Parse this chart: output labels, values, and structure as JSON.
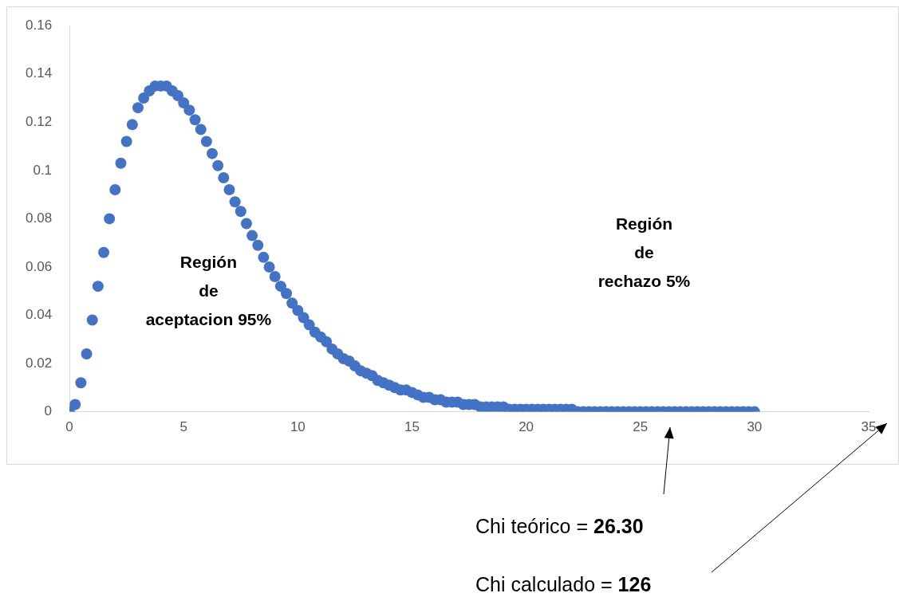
{
  "chart_data": {
    "type": "scatter",
    "marker": "circle",
    "grid": false,
    "legend": false,
    "xlim": [
      0,
      35
    ],
    "xticks": [
      0,
      5,
      10,
      15,
      20,
      25,
      30,
      35
    ],
    "ylim": [
      0,
      0.16
    ],
    "yticks": [
      0,
      0.02,
      0.04,
      0.06,
      0.08,
      0.1,
      0.12,
      0.14,
      0.16
    ],
    "series": [
      {
        "color": "#4472c4",
        "x": [
          0,
          0.25,
          0.5,
          0.75,
          1,
          1.25,
          1.5,
          1.75,
          2,
          2.25,
          2.5,
          2.75,
          3,
          3.25,
          3.5,
          3.75,
          4,
          4.25,
          4.5,
          4.75,
          5,
          5.25,
          5.5,
          5.75,
          6,
          6.25,
          6.5,
          6.75,
          7,
          7.25,
          7.5,
          7.75,
          8,
          8.25,
          8.5,
          8.75,
          9,
          9.25,
          9.5,
          9.75,
          10,
          10.25,
          10.5,
          10.75,
          11,
          11.25,
          11.5,
          11.75,
          12,
          12.25,
          12.5,
          12.75,
          13,
          13.25,
          13.5,
          13.75,
          14,
          14.25,
          14.5,
          14.75,
          15,
          15.25,
          15.5,
          15.75,
          16,
          16.25,
          16.5,
          16.75,
          17,
          17.25,
          17.5,
          17.75,
          18,
          18.25,
          18.5,
          18.75,
          19,
          19.25,
          19.5,
          19.75,
          20,
          20.25,
          20.5,
          20.75,
          21,
          21.25,
          21.5,
          21.75,
          22,
          22.25,
          22.5,
          22.75,
          23,
          23.25,
          23.5,
          23.75,
          24,
          24.25,
          24.5,
          24.75,
          25,
          25.25,
          25.5,
          25.75,
          26,
          26.25,
          26.5,
          26.75,
          27,
          27.25,
          27.5,
          27.75,
          28,
          28.25,
          28.5,
          28.75,
          29,
          29.25,
          29.5,
          29.75,
          30
        ],
        "values": [
          0,
          0.003,
          0.012,
          0.024,
          0.038,
          0.052,
          0.066,
          0.08,
          0.092,
          0.103,
          0.112,
          0.119,
          0.126,
          0.13,
          0.133,
          0.135,
          0.135,
          0.135,
          0.133,
          0.131,
          0.128,
          0.125,
          0.121,
          0.117,
          0.112,
          0.107,
          0.102,
          0.097,
          0.092,
          0.087,
          0.083,
          0.078,
          0.073,
          0.069,
          0.064,
          0.06,
          0.056,
          0.052,
          0.049,
          0.045,
          0.042,
          0.039,
          0.036,
          0.033,
          0.031,
          0.029,
          0.026,
          0.024,
          0.022,
          0.021,
          0.019,
          0.017,
          0.016,
          0.015,
          0.013,
          0.012,
          0.011,
          0.01,
          0.009,
          0.009,
          0.008,
          0.007,
          0.006,
          0.006,
          0.005,
          0.005,
          0.004,
          0.004,
          0.004,
          0.003,
          0.003,
          0.003,
          0.002,
          0.002,
          0.002,
          0.002,
          0.002,
          0.001,
          0.001,
          0.001,
          0.001,
          0.001,
          0.001,
          0.001,
          0.001,
          0.001,
          0.001,
          0.001,
          0.001,
          0,
          0,
          0,
          0,
          0,
          0,
          0,
          0,
          0,
          0,
          0,
          0,
          0,
          0,
          0,
          0,
          0,
          0,
          0,
          0,
          0,
          0,
          0,
          0,
          0,
          0,
          0,
          0,
          0,
          0,
          0,
          0
        ]
      }
    ],
    "annotations": [
      "Región\nde\naceptacion 95%",
      "Región\nde\nrechazo 5%",
      "Chi teórico = 26.30",
      "Chi calculado = 126"
    ]
  }
}
